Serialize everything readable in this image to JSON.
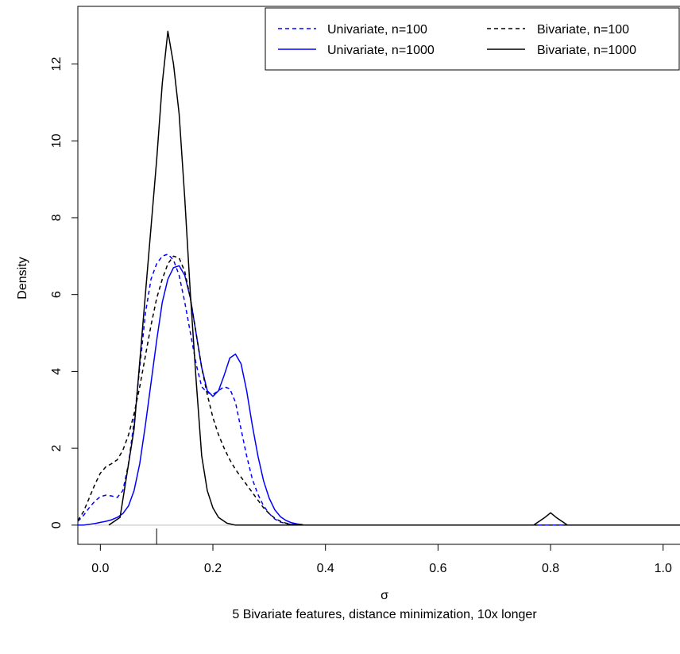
{
  "chart_data": {
    "type": "line",
    "title": "",
    "xlabel": "σ",
    "subtitle": "5 Bivariate features, distance minimization, 10x longer",
    "ylabel": "Density",
    "xlim": [
      -0.04,
      1.03
    ],
    "ylim": [
      -0.5,
      13.5
    ],
    "x_ticks": [
      0.0,
      0.2,
      0.4,
      0.6,
      0.8,
      1.0
    ],
    "x_tick_labels": [
      "0.0",
      "0.2",
      "0.4",
      "0.6",
      "0.8",
      "1.0"
    ],
    "y_ticks": [
      0,
      2,
      4,
      6,
      8,
      10,
      12
    ],
    "y_tick_labels": [
      "0",
      "2",
      "4",
      "6",
      "8",
      "10",
      "12"
    ],
    "legend_position": "top-right",
    "rug": [
      0.1
    ],
    "series": [
      {
        "name": "Univariate, n=100",
        "color": "#0000ff",
        "dash": "dashed",
        "x": [
          -0.04,
          -0.03,
          -0.02,
          -0.01,
          0.0,
          0.01,
          0.02,
          0.03,
          0.04,
          0.05,
          0.06,
          0.07,
          0.08,
          0.09,
          0.1,
          0.11,
          0.12,
          0.13,
          0.14,
          0.15,
          0.16,
          0.17,
          0.18,
          0.19,
          0.2,
          0.21,
          0.22,
          0.23,
          0.24,
          0.25,
          0.26,
          0.27,
          0.28,
          0.29,
          0.3,
          0.31,
          0.32,
          0.33,
          0.34,
          0.35,
          0.36,
          0.4,
          0.6,
          0.8,
          1.03
        ],
        "y": [
          0.1,
          0.25,
          0.45,
          0.62,
          0.74,
          0.78,
          0.76,
          0.72,
          0.9,
          1.6,
          2.7,
          4.1,
          5.5,
          6.4,
          6.8,
          7.0,
          7.05,
          6.9,
          6.5,
          5.8,
          5.0,
          4.2,
          3.6,
          3.45,
          3.4,
          3.5,
          3.6,
          3.55,
          3.2,
          2.5,
          1.8,
          1.2,
          0.8,
          0.5,
          0.3,
          0.16,
          0.08,
          0.04,
          0.02,
          0.01,
          0.0,
          0.0,
          0.0,
          0.0,
          0.0
        ]
      },
      {
        "name": "Univariate, n=1000",
        "color": "#0000ff",
        "dash": "solid",
        "x": [
          -0.04,
          -0.03,
          -0.02,
          -0.01,
          0.0,
          0.01,
          0.02,
          0.03,
          0.04,
          0.05,
          0.06,
          0.07,
          0.08,
          0.09,
          0.1,
          0.11,
          0.12,
          0.13,
          0.14,
          0.15,
          0.16,
          0.17,
          0.18,
          0.19,
          0.2,
          0.21,
          0.22,
          0.23,
          0.24,
          0.25,
          0.26,
          0.27,
          0.28,
          0.29,
          0.3,
          0.31,
          0.32,
          0.33,
          0.34,
          0.35,
          0.36,
          0.37,
          0.4,
          0.6,
          0.8,
          1.03
        ],
        "y": [
          0.0,
          0.0,
          0.02,
          0.04,
          0.07,
          0.1,
          0.14,
          0.2,
          0.3,
          0.5,
          0.9,
          1.6,
          2.6,
          3.7,
          4.8,
          5.8,
          6.4,
          6.7,
          6.75,
          6.5,
          5.9,
          5.0,
          4.1,
          3.5,
          3.35,
          3.5,
          3.9,
          4.35,
          4.45,
          4.2,
          3.5,
          2.6,
          1.8,
          1.15,
          0.7,
          0.4,
          0.22,
          0.12,
          0.06,
          0.03,
          0.01,
          0.0,
          0.0,
          0.0,
          0.0,
          0.0
        ]
      },
      {
        "name": "Bivariate, n=100",
        "color": "#000000",
        "dash": "dashed",
        "x": [
          -0.04,
          -0.03,
          -0.02,
          -0.01,
          0.0,
          0.01,
          0.02,
          0.03,
          0.04,
          0.05,
          0.06,
          0.07,
          0.08,
          0.09,
          0.1,
          0.11,
          0.12,
          0.13,
          0.14,
          0.15,
          0.16,
          0.17,
          0.18,
          0.19,
          0.2,
          0.21,
          0.22,
          0.23,
          0.24,
          0.25,
          0.26,
          0.27,
          0.28,
          0.29,
          0.3,
          0.31,
          0.32,
          0.33,
          0.34,
          0.35,
          0.36,
          0.4,
          0.6,
          0.8,
          1.03
        ],
        "y": [
          0.12,
          0.35,
          0.7,
          1.05,
          1.35,
          1.52,
          1.6,
          1.7,
          1.95,
          2.35,
          2.9,
          3.6,
          4.4,
          5.2,
          5.9,
          6.4,
          6.8,
          7.0,
          6.95,
          6.6,
          5.9,
          5.0,
          4.1,
          3.4,
          2.8,
          2.35,
          2.0,
          1.7,
          1.45,
          1.25,
          1.05,
          0.85,
          0.65,
          0.45,
          0.3,
          0.18,
          0.1,
          0.05,
          0.02,
          0.01,
          0.0,
          0.0,
          0.0,
          0.0,
          0.0
        ]
      },
      {
        "name": "Bivariate, n=1000",
        "color": "#000000",
        "dash": "solid",
        "x": [
          0.015,
          0.035,
          0.06,
          0.08,
          0.1,
          0.11,
          0.12,
          0.13,
          0.14,
          0.15,
          0.16,
          0.17,
          0.18,
          0.19,
          0.2,
          0.21,
          0.225,
          0.24,
          0.3,
          0.5,
          0.7,
          0.77,
          0.79,
          0.8,
          0.81,
          0.83,
          0.9,
          1.03
        ],
        "y": [
          0.0,
          0.2,
          2.5,
          6.0,
          9.5,
          11.5,
          12.85,
          12.0,
          10.7,
          8.5,
          6.0,
          3.8,
          1.8,
          0.9,
          0.45,
          0.2,
          0.05,
          0.0,
          0.0,
          0.0,
          0.0,
          0.0,
          0.2,
          0.32,
          0.2,
          0.0,
          0.0,
          0.0
        ]
      }
    ]
  }
}
